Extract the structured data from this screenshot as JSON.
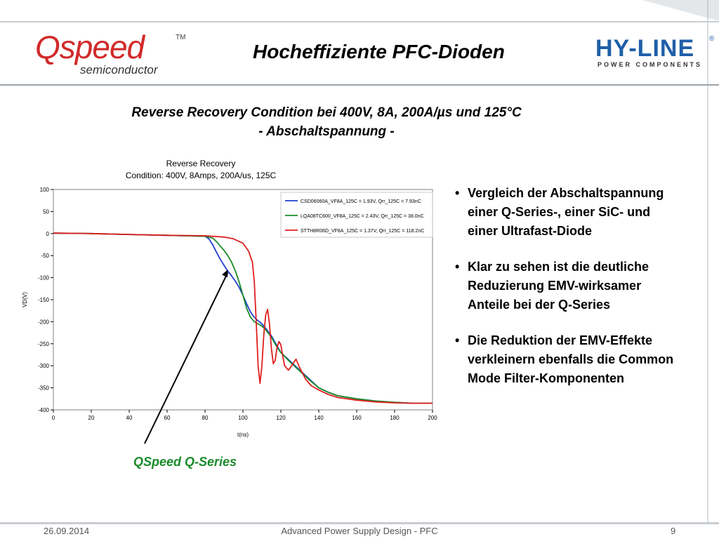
{
  "header": {
    "title": "Hocheffiziente PFC-Dioden",
    "logo_left": {
      "main": "Qspeed",
      "tm": "TM",
      "sub": "semiconductor"
    },
    "logo_right": {
      "main": "HY-LINE",
      "reg": "®",
      "sub": "POWER COMPONENTS"
    }
  },
  "subtitle": {
    "line1": "Reverse Recovery Condition bei 400V, 8A, 200A/µs und 125°C",
    "line2": "- Abschaltspannung -"
  },
  "bullets": [
    "Vergleich der Abschaltspannung  einer Q-Series-, einer SiC- und einer Ultrafast-Diode",
    "Klar zu sehen ist die deutliche Reduzierung EMV-wirksamer Anteile bei der Q-Series",
    "Die Reduktion der EMV-Effekte verkleinern ebenfalls die Common Mode Filter-Komponenten"
  ],
  "annotation": {
    "label": "QSpeed Q-Series"
  },
  "footer": {
    "date": "26.09.2014",
    "center": "Advanced Power Supply Design - PFC",
    "page": "9"
  },
  "colors": {
    "blue": "#1f3fd0",
    "green": "#1a8a2a",
    "red": "#e01f1f",
    "annotation": "#1a8a2a",
    "hyline": "#1f5fa8",
    "qspeed_red": "#d12a2a"
  },
  "chart_data": {
    "type": "line",
    "title": "Reverse Recovery",
    "subtitle": "Condition: 400V, 8Amps, 200A/us, 125C",
    "xlabel": "t(ns)",
    "ylabel": "VD(V)",
    "xlim": [
      0,
      200
    ],
    "ylim": [
      -400,
      100
    ],
    "xticks": [
      0,
      20,
      40,
      60,
      80,
      100,
      120,
      140,
      160,
      180,
      200
    ],
    "yticks": [
      100,
      50,
      0,
      -50,
      -100,
      -150,
      -200,
      -250,
      -300,
      -350,
      -400
    ],
    "grid": false,
    "legend_position": "top-right",
    "series": [
      {
        "name": "CSD06060A_VF8A_125C = 1.93V, Qrr_125C = 7.93nC",
        "color": "#1f3fd0",
        "x": [
          0,
          20,
          40,
          60,
          80,
          82,
          84,
          86,
          88,
          90,
          92,
          94,
          96,
          98,
          100,
          102,
          104,
          106,
          108,
          110,
          112,
          115,
          118,
          120,
          125,
          130,
          135,
          140,
          145,
          150,
          160,
          170,
          180,
          190,
          200
        ],
        "y": [
          1,
          0,
          -2,
          -4,
          -6,
          -12,
          -25,
          -42,
          -58,
          -72,
          -85,
          -96,
          -108,
          -122,
          -140,
          -160,
          -178,
          -190,
          -198,
          -205,
          -215,
          -232,
          -255,
          -270,
          -290,
          -310,
          -330,
          -350,
          -360,
          -368,
          -375,
          -380,
          -383,
          -385,
          -385
        ]
      },
      {
        "name": "LQA08TC600_VF8A_125C = 2.43V, Qrr_125C = 38.0nC",
        "color": "#1a8a2a",
        "x": [
          0,
          20,
          40,
          60,
          80,
          84,
          86,
          88,
          90,
          92,
          94,
          96,
          98,
          100,
          102,
          104,
          106,
          108,
          110,
          112,
          115,
          118,
          120,
          125,
          130,
          135,
          140,
          145,
          150,
          160,
          170,
          180,
          190,
          200
        ],
        "y": [
          1,
          0,
          -2,
          -4,
          -6,
          -10,
          -18,
          -28,
          -38,
          -50,
          -65,
          -85,
          -110,
          -140,
          -170,
          -190,
          -200,
          -205,
          -210,
          -218,
          -235,
          -258,
          -270,
          -292,
          -312,
          -332,
          -350,
          -360,
          -368,
          -375,
          -380,
          -383,
          -385,
          -385
        ]
      },
      {
        "name": "STTH8R06D_VF8A_125C = 1.37V, Qrr_125C = 118.2nC",
        "color": "#e01f1f",
        "x": [
          0,
          20,
          40,
          60,
          80,
          90,
          95,
          100,
          103,
          105,
          106,
          107,
          108,
          109,
          110,
          111,
          112,
          113,
          114,
          115,
          116,
          117,
          118,
          119,
          120,
          121,
          122,
          124,
          126,
          128,
          130,
          133,
          136,
          140,
          145,
          150,
          160,
          170,
          180,
          190,
          200
        ],
        "y": [
          1,
          0,
          -2,
          -4,
          -5,
          -8,
          -12,
          -22,
          -40,
          -65,
          -110,
          -200,
          -300,
          -340,
          -300,
          -230,
          -185,
          -172,
          -205,
          -260,
          -295,
          -288,
          -258,
          -245,
          -252,
          -278,
          -300,
          -310,
          -298,
          -285,
          -305,
          -330,
          -345,
          -355,
          -365,
          -372,
          -378,
          -382,
          -384,
          -385,
          -385
        ]
      }
    ]
  }
}
